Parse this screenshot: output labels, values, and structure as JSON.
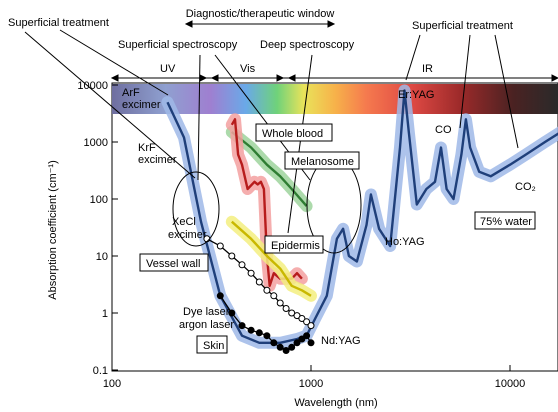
{
  "chart_data": {
    "type": "line",
    "title": "",
    "xlabel": "Wavelength (nm)",
    "ylabel": "Absorption coefficient (cm⁻¹)",
    "xscale": "log",
    "yscale": "log",
    "xlim": [
      100,
      20000
    ],
    "ylim": [
      0.1,
      10000
    ],
    "x_ticks": [
      "100",
      "1000",
      "10000"
    ],
    "y_ticks": [
      "10000",
      "1000",
      "100",
      "10",
      "1",
      "0.1"
    ],
    "grid": false,
    "top_labels": {
      "window": "Diagnostic/therapeutic window",
      "spec1": "Superficial spectroscopy",
      "spec2": "Deep spectroscopy",
      "treat_left": "Superficial treatment",
      "treat_right": "Superficial treatment",
      "uv": "UV",
      "vis": "Vis",
      "ir": "IR"
    },
    "lasers": {
      "arf": [
        "ArF",
        "excimer"
      ],
      "krf": [
        "KrF",
        "excimer"
      ],
      "xecl": [
        "XeCl",
        "excimer"
      ],
      "eryag": "Er:YAG",
      "co": "CO",
      "co2": "CO₂",
      "hoyag": "Ho:YAG",
      "ndyag": "Nd:YAG",
      "dye": [
        "Dye laser",
        "argon laser"
      ]
    },
    "boxed_labels": {
      "whole_blood": "Whole blood",
      "melanosome": "Melanosome",
      "epidermis": "Epidermis",
      "vessel_wall": "Vessel wall",
      "skin": "Skin",
      "water": "75% water"
    },
    "series": [
      {
        "name": "75% water",
        "color": "#1f3f7a",
        "x": [
          190,
          230,
          280,
          350,
          450,
          550,
          700,
          850,
          950,
          1050,
          1200,
          1350,
          1450,
          1550,
          1700,
          1900,
          2000,
          2200,
          2500,
          2800,
          2950,
          3100,
          3400,
          3800,
          4200,
          4500,
          4800,
          5200,
          5700,
          6000,
          6300,
          7000,
          8000,
          10000,
          12000,
          15000,
          18000
        ],
        "y": [
          5000,
          1200,
          40,
          2,
          0.4,
          0.3,
          0.3,
          0.35,
          0.4,
          0.8,
          2,
          20,
          30,
          10,
          8,
          35,
          120,
          30,
          15,
          800,
          8000,
          1500,
          80,
          150,
          200,
          800,
          150,
          100,
          600,
          2500,
          800,
          300,
          250,
          400,
          600,
          1000,
          1500
        ]
      },
      {
        "name": "Whole blood",
        "color": "#2e7d32",
        "x": [
          400,
          500,
          600,
          700,
          800,
          950
        ],
        "y": [
          1500,
          800,
          400,
          250,
          150,
          75
        ]
      },
      {
        "name": "Melanosome",
        "color": "#b71c1c",
        "x": [
          400,
          415,
          430,
          450,
          480,
          520,
          540,
          560,
          580,
          600,
          620,
          650,
          700,
          750,
          800,
          850,
          900
        ],
        "y": [
          2000,
          2500,
          600,
          400,
          150,
          200,
          180,
          200,
          150,
          10,
          3,
          5,
          4,
          4,
          4,
          5,
          4
        ]
      },
      {
        "name": "Epidermis",
        "color": "#c9b800",
        "x": [
          400,
          500,
          600,
          700,
          800,
          900,
          1000
        ],
        "y": [
          40,
          20,
          10,
          6,
          3,
          2.5,
          2
        ]
      },
      {
        "name": "Vessel wall",
        "color": "#000000",
        "x": [
          300,
          350,
          400,
          450,
          500,
          550,
          600,
          650,
          700,
          750,
          800,
          850,
          900,
          950,
          1000
        ],
        "y": [
          20,
          15,
          10,
          7,
          5,
          3.5,
          2.5,
          2,
          1.5,
          1.2,
          1,
          0.9,
          0.8,
          0.7,
          0.6
        ]
      },
      {
        "name": "Skin",
        "color": "#000000",
        "x": [
          350,
          400,
          450,
          500,
          550,
          600,
          650,
          700,
          750,
          800,
          850,
          900,
          950,
          1000
        ],
        "y": [
          2,
          1,
          0.6,
          0.5,
          0.45,
          0.4,
          0.3,
          0.25,
          0.22,
          0.25,
          0.3,
          0.35,
          0.4,
          0.3
        ]
      }
    ]
  }
}
